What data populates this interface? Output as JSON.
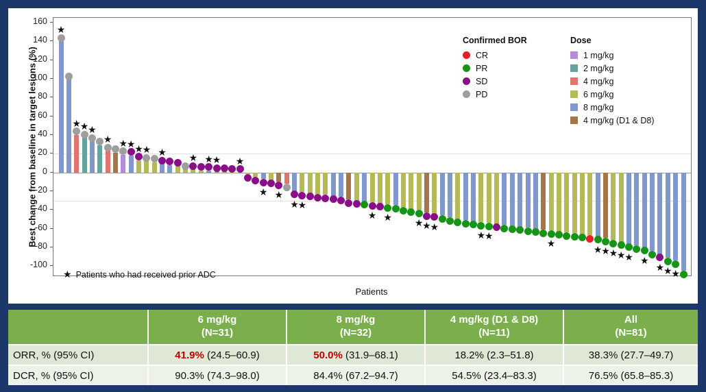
{
  "chart": {
    "y_axis_label": "Best change from baseline in target lesions (%)",
    "x_axis_label": "Patients",
    "footnote_marker": "★",
    "footnote_text": "Patients who had received prior ADC",
    "legend_bor_title": "Confirmed BOR",
    "legend_dose_title": "Dose"
  },
  "chart_data": {
    "type": "bar",
    "subtype": "waterfall",
    "title": "",
    "xlabel": "Patients",
    "ylabel": "Best change from baseline in target lesions (%)",
    "ylim": [
      -110,
      165
    ],
    "yticks": [
      160,
      140,
      120,
      100,
      80,
      60,
      40,
      20,
      0,
      -20,
      -40,
      -60,
      -80,
      -100
    ],
    "reference_lines": [
      20,
      -30
    ],
    "grid": "reference-lines-only",
    "legend_position": "top-right-inside",
    "bor_legend": [
      {
        "label": "CR",
        "color": "#ec1c24"
      },
      {
        "label": "PR",
        "color": "#169416"
      },
      {
        "label": "SD",
        "color": "#8a0d8a"
      },
      {
        "label": "PD",
        "color": "#9e9e9e"
      }
    ],
    "dose_legend": [
      {
        "label": "1 mg/kg",
        "color": "#b48cd8"
      },
      {
        "label": "2 mg/kg",
        "color": "#67a39e"
      },
      {
        "label": "4 mg/kg",
        "color": "#e0756b"
      },
      {
        "label": "6 mg/kg",
        "color": "#b5b957"
      },
      {
        "label": "8 mg/kg",
        "color": "#8098cc"
      },
      {
        "label": "4 mg/kg (D1 & D8)",
        "color": "#a57748"
      }
    ],
    "star_meaning": "prior ADC",
    "patients": [
      {
        "v": 140,
        "d": "8 mg/kg",
        "bor": "PD",
        "s": true
      },
      {
        "v": 99,
        "d": "8 mg/kg",
        "bor": "PD",
        "s": false
      },
      {
        "v": 40,
        "d": "4 mg/kg",
        "bor": "PD",
        "s": true
      },
      {
        "v": 37,
        "d": "2 mg/kg",
        "bor": "PD",
        "s": true
      },
      {
        "v": 33,
        "d": "8 mg/kg",
        "bor": "PD",
        "s": true
      },
      {
        "v": 29,
        "d": "2 mg/kg",
        "bor": "PD",
        "s": false
      },
      {
        "v": 23,
        "d": "4 mg/kg",
        "bor": "PD",
        "s": true
      },
      {
        "v": 21,
        "d": "4 mg/kg (D1 & D8)",
        "bor": "PD",
        "s": false
      },
      {
        "v": 19,
        "d": "1 mg/kg",
        "bor": "PD",
        "s": true
      },
      {
        "v": 18,
        "d": "8 mg/kg",
        "bor": "SD",
        "s": true
      },
      {
        "v": 13,
        "d": "6 mg/kg",
        "bor": "SD",
        "s": true
      },
      {
        "v": 12,
        "d": "6 mg/kg",
        "bor": "PD",
        "s": true
      },
      {
        "v": 11,
        "d": "6 mg/kg",
        "bor": "PD",
        "s": false
      },
      {
        "v": 9,
        "d": "8 mg/kg",
        "bor": "SD",
        "s": true
      },
      {
        "v": 8,
        "d": "8 mg/kg",
        "bor": "SD",
        "s": false
      },
      {
        "v": 7,
        "d": "6 mg/kg",
        "bor": "SD",
        "s": false
      },
      {
        "v": 3,
        "d": "6 mg/kg",
        "bor": "PD",
        "s": false
      },
      {
        "v": 3,
        "d": "6 mg/kg",
        "bor": "SD",
        "s": true
      },
      {
        "v": 2,
        "d": "6 mg/kg",
        "bor": "SD",
        "s": false
      },
      {
        "v": 2,
        "d": "8 mg/kg",
        "bor": "SD",
        "s": true
      },
      {
        "v": 1,
        "d": "6 mg/kg",
        "bor": "SD",
        "s": true
      },
      {
        "v": 1,
        "d": "6 mg/kg",
        "bor": "SD",
        "s": false
      },
      {
        "v": 0,
        "d": "6 mg/kg",
        "bor": "SD",
        "s": false
      },
      {
        "v": 0,
        "d": "8 mg/kg",
        "bor": "SD",
        "s": true
      },
      {
        "v": -2,
        "d": "6 mg/kg",
        "bor": "SD",
        "s": false
      },
      {
        "v": -5,
        "d": "6 mg/kg",
        "bor": "SD",
        "s": false
      },
      {
        "v": -7,
        "d": "8 mg/kg",
        "bor": "SD",
        "s": true
      },
      {
        "v": -8,
        "d": "6 mg/kg",
        "bor": "SD",
        "s": false
      },
      {
        "v": -10,
        "d": "4 mg/kg (D1 & D8)",
        "bor": "SD",
        "s": true
      },
      {
        "v": -12,
        "d": "4 mg/kg",
        "bor": "PD",
        "s": false
      },
      {
        "v": -20,
        "d": "8 mg/kg",
        "bor": "SD",
        "s": true
      },
      {
        "v": -21,
        "d": "6 mg/kg",
        "bor": "SD",
        "s": true
      },
      {
        "v": -22,
        "d": "6 mg/kg",
        "bor": "SD",
        "s": false
      },
      {
        "v": -23,
        "d": "6 mg/kg",
        "bor": "SD",
        "s": false
      },
      {
        "v": -24,
        "d": "6 mg/kg",
        "bor": "SD",
        "s": false
      },
      {
        "v": -25,
        "d": "8 mg/kg",
        "bor": "SD",
        "s": false
      },
      {
        "v": -26,
        "d": "8 mg/kg",
        "bor": "SD",
        "s": false
      },
      {
        "v": -29,
        "d": "4 mg/kg (D1 & D8)",
        "bor": "SD",
        "s": false
      },
      {
        "v": -30,
        "d": "6 mg/kg",
        "bor": "SD",
        "s": false
      },
      {
        "v": -31,
        "d": "8 mg/kg",
        "bor": "PR",
        "s": false
      },
      {
        "v": -32,
        "d": "6 mg/kg",
        "bor": "SD",
        "s": true
      },
      {
        "v": -33,
        "d": "6 mg/kg",
        "bor": "SD",
        "s": false
      },
      {
        "v": -34,
        "d": "6 mg/kg",
        "bor": "PR",
        "s": true
      },
      {
        "v": -35,
        "d": "8 mg/kg",
        "bor": "PR",
        "s": false
      },
      {
        "v": -37,
        "d": "6 mg/kg",
        "bor": "PR",
        "s": false
      },
      {
        "v": -39,
        "d": "6 mg/kg",
        "bor": "PR",
        "s": false
      },
      {
        "v": -40,
        "d": "6 mg/kg",
        "bor": "PR",
        "s": true
      },
      {
        "v": -43,
        "d": "4 mg/kg (D1 & D8)",
        "bor": "SD",
        "s": true
      },
      {
        "v": -44,
        "d": "6 mg/kg",
        "bor": "SD",
        "s": true
      },
      {
        "v": -46,
        "d": "8 mg/kg",
        "bor": "PR",
        "s": false
      },
      {
        "v": -48,
        "d": "8 mg/kg",
        "bor": "PR",
        "s": false
      },
      {
        "v": -50,
        "d": "6 mg/kg",
        "bor": "PR",
        "s": false
      },
      {
        "v": -51,
        "d": "8 mg/kg",
        "bor": "PR",
        "s": false
      },
      {
        "v": -52,
        "d": "8 mg/kg",
        "bor": "PR",
        "s": false
      },
      {
        "v": -53,
        "d": "6 mg/kg",
        "bor": "PR",
        "s": true
      },
      {
        "v": -54,
        "d": "6 mg/kg",
        "bor": "PR",
        "s": true
      },
      {
        "v": -55,
        "d": "6 mg/kg",
        "bor": "SD",
        "s": false
      },
      {
        "v": -56,
        "d": "8 mg/kg",
        "bor": "PR",
        "s": false
      },
      {
        "v": -57,
        "d": "8 mg/kg",
        "bor": "PR",
        "s": false
      },
      {
        "v": -58,
        "d": "8 mg/kg",
        "bor": "PR",
        "s": false
      },
      {
        "v": -59,
        "d": "8 mg/kg",
        "bor": "PR",
        "s": false
      },
      {
        "v": -60,
        "d": "8 mg/kg",
        "bor": "PR",
        "s": false
      },
      {
        "v": -61,
        "d": "4 mg/kg (D1 & D8)",
        "bor": "PR",
        "s": false
      },
      {
        "v": -62,
        "d": "6 mg/kg",
        "bor": "PR",
        "s": true
      },
      {
        "v": -63,
        "d": "6 mg/kg",
        "bor": "PR",
        "s": false
      },
      {
        "v": -64,
        "d": "6 mg/kg",
        "bor": "PR",
        "s": false
      },
      {
        "v": -65,
        "d": "6 mg/kg",
        "bor": "PR",
        "s": false
      },
      {
        "v": -66,
        "d": "6 mg/kg",
        "bor": "PR",
        "s": false
      },
      {
        "v": -67,
        "d": "6 mg/kg",
        "bor": "CR",
        "s": false
      },
      {
        "v": -68,
        "d": "8 mg/kg",
        "bor": "PR",
        "s": true
      },
      {
        "v": -70,
        "d": "4 mg/kg (D1 & D8)",
        "bor": "PR",
        "s": true
      },
      {
        "v": -72,
        "d": "6 mg/kg",
        "bor": "PR",
        "s": true
      },
      {
        "v": -74,
        "d": "6 mg/kg",
        "bor": "PR",
        "s": true
      },
      {
        "v": -76,
        "d": "8 mg/kg",
        "bor": "PR",
        "s": true
      },
      {
        "v": -78,
        "d": "8 mg/kg",
        "bor": "PR",
        "s": false
      },
      {
        "v": -80,
        "d": "8 mg/kg",
        "bor": "PR",
        "s": true
      },
      {
        "v": -84,
        "d": "8 mg/kg",
        "bor": "PR",
        "s": false
      },
      {
        "v": -87,
        "d": "8 mg/kg",
        "bor": "SD",
        "s": true
      },
      {
        "v": -91,
        "d": "8 mg/kg",
        "bor": "PR",
        "s": true
      },
      {
        "v": -94,
        "d": "8 mg/kg",
        "bor": "PR",
        "s": true
      },
      {
        "v": -105,
        "d": "8 mg/kg",
        "bor": "PR",
        "s": false
      }
    ]
  },
  "table": {
    "columns": [
      {
        "line1": "6 mg/kg",
        "line2": "(N=31)"
      },
      {
        "line1": "8 mg/kg",
        "line2": "(N=32)"
      },
      {
        "line1": "4 mg/kg (D1 & D8)",
        "line2": "(N=11)"
      },
      {
        "line1": "All",
        "line2": "(N=81)"
      }
    ],
    "rows": [
      {
        "label": "ORR, % (95% CI)",
        "cells": [
          {
            "highlight": "41.9%",
            "rest": " (24.5–60.9)"
          },
          {
            "highlight": "50.0%",
            "rest": " (31.9–68.1)"
          },
          {
            "highlight": "",
            "rest": "18.2% (2.3–51.8)"
          },
          {
            "highlight": "",
            "rest": "38.3% (27.7–49.7)"
          }
        ]
      },
      {
        "label": "DCR, % (95% CI)",
        "cells": [
          {
            "highlight": "",
            "rest": "90.3% (74.3–98.0)"
          },
          {
            "highlight": "",
            "rest": "84.4% (67.2–94.7)"
          },
          {
            "highlight": "",
            "rest": "54.5% (23.4–83.3)"
          },
          {
            "highlight": "",
            "rest": "76.5% (65.8–85.3)"
          }
        ]
      }
    ]
  }
}
